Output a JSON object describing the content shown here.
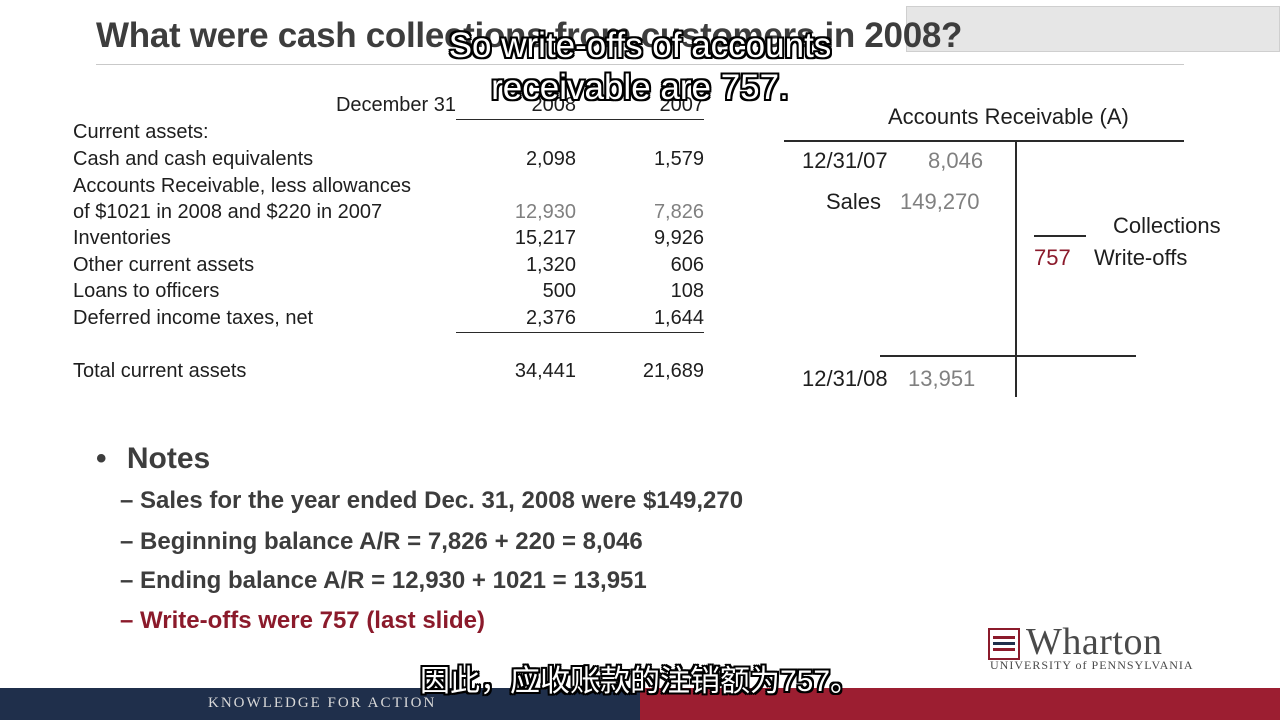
{
  "slide": {
    "title": "What were cash collections from customers in 2008?"
  },
  "subtitles": {
    "line1": "So write-offs of accounts",
    "line2": "receivable are 757.",
    "chinese": "因此，应收账款的注销额为757。"
  },
  "balance_sheet": {
    "header_label": "December 31",
    "col_2008": "2008",
    "col_2007": "2007",
    "section": "Current assets:",
    "rows": [
      {
        "label": "Cash and cash equivalents",
        "v2008": "2,098",
        "v2007": "1,579"
      },
      {
        "label": "Accounts Receivable, less allowances",
        "v2008": "",
        "v2007": ""
      },
      {
        "label": "of $1021 in 2008 and $220 in 2007",
        "v2008": "12,930",
        "v2007": "7,826"
      },
      {
        "label": "Inventories",
        "v2008": "15,217",
        "v2007": "9,926"
      },
      {
        "label": "Other current assets",
        "v2008": "1,320",
        "v2007": "606"
      },
      {
        "label": "Loans to officers",
        "v2008": "500",
        "v2007": "108"
      },
      {
        "label": "Deferred income taxes, net",
        "v2008": "2,376",
        "v2007": "1,644"
      }
    ],
    "total": {
      "label": "Total current assets",
      "v2008": "34,441",
      "v2007": "21,689"
    }
  },
  "t_account": {
    "title": "Accounts Receivable (A)",
    "begin_date": "12/31/07",
    "begin_amount": "8,046",
    "sales_label": "Sales",
    "sales_amount": "149,270",
    "collections_label": "Collections",
    "writeoff_amount": "757",
    "writeoff_label": "Write-offs",
    "end_date": "12/31/08",
    "end_amount": "13,951"
  },
  "notes": {
    "bullet": "•",
    "heading": "Notes",
    "items": [
      "– Sales for the year ended Dec. 31, 2008 were $149,270",
      "– Beginning balance A/R = 7,826 + 220 = 8,046",
      "– Ending balance A/R = 12,930 + 1021 = 13,951",
      "– Write-offs were 757 (last slide)"
    ]
  },
  "logo": {
    "wordmark": "Wharton",
    "tagline": "UNIVERSITY of PENNSYLVANIA"
  },
  "footer": {
    "text": "KNOWLEDGE FOR ACTION"
  },
  "colors": {
    "accent_red": "#8b1a2b",
    "footer_blue": "#1f2f4b",
    "footer_red": "#9c1e31"
  }
}
